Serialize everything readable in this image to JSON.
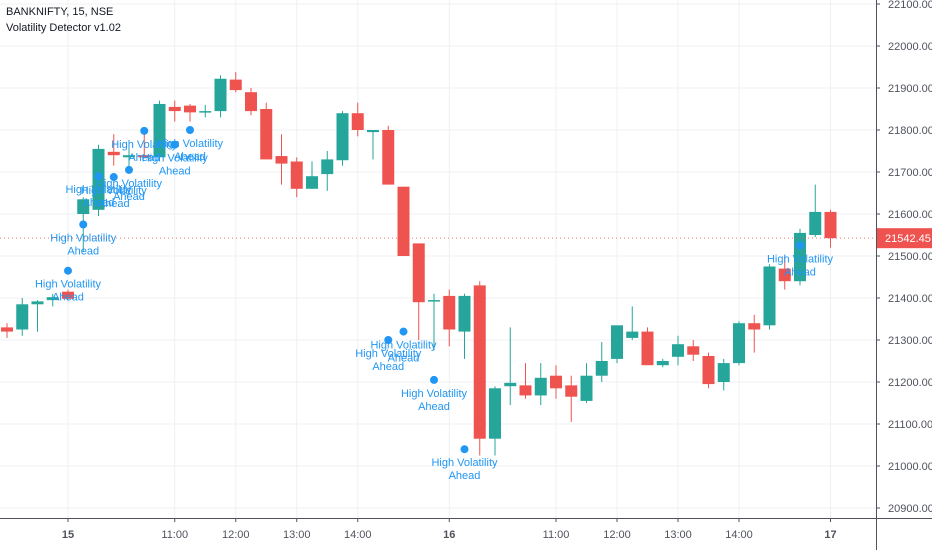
{
  "legend": {
    "symbol_line": "BANKNIFTY, 15, NSE",
    "indicator_line": "Volatility Detector v1.02"
  },
  "colors": {
    "up": "#26a69a",
    "down": "#ef5350",
    "marker": "#2196f3",
    "grid": "#eef0f3",
    "axis_text": "#50535e",
    "price_label_bg": "#ef5350"
  },
  "chart_data": {
    "type": "candlestick",
    "title": "BANKNIFTY, 15, NSE",
    "indicator": "Volatility Detector v1.02",
    "ylim": [
      20900,
      22100
    ],
    "y_ticks": [
      "22100.00",
      "22000.00",
      "21900.00",
      "21800.00",
      "21700.00",
      "21600.00",
      "21500.00",
      "21400.00",
      "21300.00",
      "21200.00",
      "21100.00",
      "21000.00",
      "20900.00"
    ],
    "y_tick_values": [
      22100,
      22000,
      21900,
      21800,
      21700,
      21600,
      21500,
      21400,
      21300,
      21200,
      21100,
      21000,
      20900
    ],
    "last_price_label": "21542.45",
    "last_price": 21542.45,
    "x_ticks": [
      {
        "label": "15",
        "bar": 4,
        "bold": true
      },
      {
        "label": "11:00",
        "bar": 11,
        "bold": false
      },
      {
        "label": "12:00",
        "bar": 15,
        "bold": false
      },
      {
        "label": "13:00",
        "bar": 19,
        "bold": false
      },
      {
        "label": "14:00",
        "bar": 23,
        "bold": false
      },
      {
        "label": "16",
        "bar": 29,
        "bold": true
      },
      {
        "label": "11:00",
        "bar": 36,
        "bold": false
      },
      {
        "label": "12:00",
        "bar": 40,
        "bold": false
      },
      {
        "label": "13:00",
        "bar": 44,
        "bold": false
      },
      {
        "label": "14:00",
        "bar": 48,
        "bold": false
      },
      {
        "label": "17",
        "bar": 54,
        "bold": true
      }
    ],
    "annotation_text": [
      "High Volatility",
      "Ahead"
    ],
    "candles": [
      {
        "o": 21330,
        "h": 21340,
        "l": 21305,
        "c": 21320
      },
      {
        "o": 21325,
        "h": 21400,
        "l": 21310,
        "c": 21385
      },
      {
        "o": 21385,
        "h": 21395,
        "l": 21320,
        "c": 21392
      },
      {
        "o": 21395,
        "h": 21410,
        "l": 21380,
        "c": 21402
      },
      {
        "o": 21415,
        "h": 21420,
        "l": 21395,
        "c": 21398
      },
      {
        "o": 21600,
        "h": 21640,
        "l": 21510,
        "c": 21635
      },
      {
        "o": 21610,
        "h": 21765,
        "l": 21595,
        "c": 21755
      },
      {
        "o": 21748,
        "h": 21790,
        "l": 21715,
        "c": 21740
      },
      {
        "o": 21735,
        "h": 21775,
        "l": 21700,
        "c": 21740
      },
      {
        "o": 21740,
        "h": 21795,
        "l": 21735,
        "c": 21735
      },
      {
        "o": 21735,
        "h": 21870,
        "l": 21725,
        "c": 21862
      },
      {
        "o": 21855,
        "h": 21870,
        "l": 21820,
        "c": 21845
      },
      {
        "o": 21858,
        "h": 21862,
        "l": 21820,
        "c": 21842
      },
      {
        "o": 21845,
        "h": 21860,
        "l": 21830,
        "c": 21845
      },
      {
        "o": 21845,
        "h": 21930,
        "l": 21830,
        "c": 21922
      },
      {
        "o": 21920,
        "h": 21938,
        "l": 21890,
        "c": 21895
      },
      {
        "o": 21890,
        "h": 21900,
        "l": 21835,
        "c": 21845
      },
      {
        "o": 21850,
        "h": 21865,
        "l": 21730,
        "c": 21730
      },
      {
        "o": 21738,
        "h": 21790,
        "l": 21670,
        "c": 21720
      },
      {
        "o": 21725,
        "h": 21735,
        "l": 21640,
        "c": 21660
      },
      {
        "o": 21660,
        "h": 21725,
        "l": 21660,
        "c": 21690
      },
      {
        "o": 21695,
        "h": 21750,
        "l": 21655,
        "c": 21730
      },
      {
        "o": 21728,
        "h": 21845,
        "l": 21715,
        "c": 21840
      },
      {
        "o": 21840,
        "h": 21865,
        "l": 21785,
        "c": 21800
      },
      {
        "o": 21795,
        "h": 21800,
        "l": 21730,
        "c": 21800
      },
      {
        "o": 21800,
        "h": 21810,
        "l": 21670,
        "c": 21670
      },
      {
        "o": 21665,
        "h": 21665,
        "l": 21500,
        "c": 21500
      },
      {
        "o": 21530,
        "h": 21530,
        "l": 21300,
        "c": 21390
      },
      {
        "o": 21395,
        "h": 21410,
        "l": 21275,
        "c": 21395
      },
      {
        "o": 21405,
        "h": 21420,
        "l": 21285,
        "c": 21325
      },
      {
        "o": 21320,
        "h": 21410,
        "l": 21255,
        "c": 21405
      },
      {
        "o": 21430,
        "h": 21440,
        "l": 21025,
        "c": 21065
      },
      {
        "o": 21065,
        "h": 21190,
        "l": 21025,
        "c": 21185
      },
      {
        "o": 21190,
        "h": 21330,
        "l": 21145,
        "c": 21198
      },
      {
        "o": 21192,
        "h": 21245,
        "l": 21160,
        "c": 21168
      },
      {
        "o": 21168,
        "h": 21245,
        "l": 21145,
        "c": 21210
      },
      {
        "o": 21215,
        "h": 21240,
        "l": 21160,
        "c": 21185
      },
      {
        "o": 21192,
        "h": 21215,
        "l": 21105,
        "c": 21165
      },
      {
        "o": 21155,
        "h": 21245,
        "l": 21150,
        "c": 21215
      },
      {
        "o": 21215,
        "h": 21295,
        "l": 21200,
        "c": 21250
      },
      {
        "o": 21255,
        "h": 21330,
        "l": 21245,
        "c": 21335
      },
      {
        "o": 21305,
        "h": 21380,
        "l": 21300,
        "c": 21320
      },
      {
        "o": 21320,
        "h": 21330,
        "l": 21245,
        "c": 21240
      },
      {
        "o": 21240,
        "h": 21255,
        "l": 21235,
        "c": 21250
      },
      {
        "o": 21260,
        "h": 21310,
        "l": 21240,
        "c": 21290
      },
      {
        "o": 21285,
        "h": 21300,
        "l": 21250,
        "c": 21265
      },
      {
        "o": 21262,
        "h": 21270,
        "l": 21185,
        "c": 21195
      },
      {
        "o": 21200,
        "h": 21255,
        "l": 21180,
        "c": 21245
      },
      {
        "o": 21245,
        "h": 21345,
        "l": 21240,
        "c": 21340
      },
      {
        "o": 21340,
        "h": 21360,
        "l": 21270,
        "c": 21325
      },
      {
        "o": 21335,
        "h": 21480,
        "l": 21325,
        "c": 21475
      },
      {
        "o": 21470,
        "h": 21500,
        "l": 21420,
        "c": 21440
      },
      {
        "o": 21440,
        "h": 21565,
        "l": 21430,
        "c": 21555
      },
      {
        "o": 21550,
        "h": 21670,
        "l": 21545,
        "c": 21605
      },
      {
        "o": 21605,
        "h": 21610,
        "l": 21520,
        "c": 21542.45
      }
    ],
    "markers": [
      {
        "bar": 4,
        "price": 21465
      },
      {
        "bar": 5,
        "price": 21575
      },
      {
        "bar": 6,
        "price": 21690
      },
      {
        "bar": 7,
        "price": 21688
      },
      {
        "bar": 8,
        "price": 21705
      },
      {
        "bar": 9,
        "price": 21798
      },
      {
        "bar": 11,
        "price": 21765
      },
      {
        "bar": 12,
        "price": 21800
      },
      {
        "bar": 25,
        "price": 21300
      },
      {
        "bar": 26,
        "price": 21320
      },
      {
        "bar": 28,
        "price": 21205
      },
      {
        "bar": 30,
        "price": 21040
      },
      {
        "bar": 52,
        "price": 21525
      }
    ]
  }
}
